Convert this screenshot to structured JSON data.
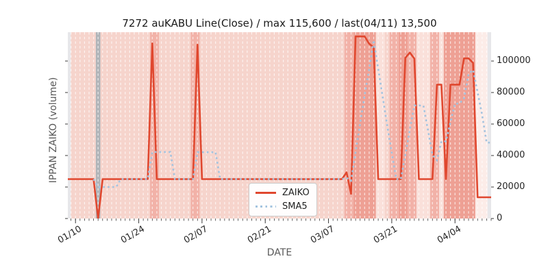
{
  "accent_colors": {
    "zaiko_line": "#e0472e",
    "sma5_line": "#a3c3df",
    "title_text": "#1a1a1a",
    "tick_text": "#262626",
    "axis_label_text": "#595959"
  },
  "chart_data": {
    "type": "line",
    "title": "7272 auKABU Line(Close) / max 115,600 / last(04/11) 13,500",
    "xlabel": "DATE",
    "ylabel": "IPPAN ZAIKO (volume)",
    "stats": {
      "max": 115600,
      "last": 13500,
      "last_date": "04/11",
      "symbol": "7272 auKABU"
    },
    "legend": {
      "position": "lower center",
      "entries": [
        "ZAIKO",
        "SMA5"
      ]
    },
    "grid": "white dashed vertical lines, one per day",
    "ylim": [
      0,
      118300
    ],
    "y_ticks": [
      0,
      20000,
      40000,
      60000,
      80000,
      100000
    ],
    "y_tick_side": "right",
    "x_tick_labels": [
      "01/10",
      "01/24",
      "02/07",
      "02/21",
      "03/07",
      "03/21",
      "04/04"
    ],
    "x_tick_days": [
      0,
      14,
      28,
      42,
      56,
      70,
      84
    ],
    "x_minor_ticks": "daily",
    "xlim_days": [
      -1.7,
      92.0
    ],
    "dates": [
      "01/10",
      "01/11",
      "01/12",
      "01/13",
      "01/14",
      "01/15",
      "01/16",
      "01/17",
      "01/18",
      "01/19",
      "01/20",
      "01/21",
      "01/22",
      "01/23",
      "01/24",
      "01/25",
      "01/26",
      "01/27",
      "01/28",
      "01/29",
      "01/30",
      "01/31",
      "02/01",
      "02/02",
      "02/03",
      "02/04",
      "02/05",
      "02/06",
      "02/07",
      "02/08",
      "02/09",
      "02/10",
      "02/11",
      "02/12",
      "02/13",
      "02/14",
      "02/15",
      "02/16",
      "02/17",
      "02/18",
      "02/19",
      "02/20",
      "02/21",
      "02/22",
      "02/23",
      "02/24",
      "02/25",
      "02/26",
      "02/27",
      "02/28",
      "03/01",
      "03/02",
      "03/03",
      "03/04",
      "03/05",
      "03/06",
      "03/07",
      "03/08",
      "03/09",
      "03/10",
      "03/11",
      "03/12",
      "03/13",
      "03/14",
      "03/15",
      "03/16",
      "03/17",
      "03/18",
      "03/19",
      "03/20",
      "03/21",
      "03/22",
      "03/23",
      "03/24",
      "03/25",
      "03/26",
      "03/27",
      "03/28",
      "03/29",
      "03/30",
      "03/31",
      "04/01",
      "04/02",
      "04/03",
      "04/04",
      "04/05",
      "04/06",
      "04/07",
      "04/08",
      "04/09",
      "04/10",
      "04/11"
    ],
    "series": [
      {
        "name": "ZAIKO",
        "style": "solid",
        "color": "#e0472e",
        "values": [
          25000,
          25000,
          25000,
          25000,
          25000,
          0,
          25000,
          25000,
          25000,
          25000,
          25000,
          25000,
          25000,
          25000,
          25000,
          25000,
          25000,
          111200,
          25000,
          25000,
          25000,
          25000,
          25000,
          25000,
          25000,
          25000,
          25000,
          110400,
          25000,
          25000,
          25000,
          25000,
          25000,
          25000,
          25000,
          25000,
          25000,
          25000,
          25000,
          25000,
          25000,
          25000,
          25000,
          25000,
          25000,
          25000,
          25000,
          25000,
          25000,
          25000,
          25000,
          25000,
          25000,
          25000,
          25000,
          25000,
          25000,
          25000,
          25000,
          25000,
          29300,
          15600,
          115600,
          115600,
          115600,
          111000,
          108600,
          25000,
          25000,
          25000,
          25000,
          25000,
          25000,
          102000,
          105400,
          101500,
          25000,
          25000,
          25000,
          25000,
          85000,
          85000,
          25000,
          85000,
          85000,
          85000,
          101700,
          101700,
          98800,
          13500,
          13500,
          13500
        ]
      },
      {
        "name": "SMA5",
        "style": "dotted",
        "color": "#a3c3df",
        "values": [
          null,
          null,
          null,
          null,
          25000,
          20000,
          20000,
          20000,
          20000,
          20000,
          25000,
          25000,
          25000,
          25000,
          25000,
          25000,
          25000,
          42240,
          42240,
          42240,
          42240,
          42240,
          25000,
          25000,
          25000,
          25000,
          25000,
          42080,
          42080,
          42080,
          42080,
          42080,
          25000,
          25000,
          25000,
          25000,
          25000,
          25000,
          25000,
          25000,
          25000,
          25000,
          25000,
          25000,
          25000,
          25000,
          25000,
          25000,
          25000,
          25000,
          25000,
          25000,
          25000,
          25000,
          25000,
          25000,
          25000,
          25000,
          25000,
          25000,
          25860,
          23980,
          42100,
          60220,
          78340,
          94680,
          113280,
          95160,
          77040,
          58920,
          41720,
          25000,
          25000,
          40400,
          56480,
          71780,
          71780,
          71780,
          56380,
          40300,
          37000,
          49000,
          49000,
          61000,
          73000,
          73000,
          76340,
          91680,
          94440,
          80140,
          65840,
          48200
        ]
      }
    ],
    "background_bands": {
      "colors": {
        "base": "#f6d4cc",
        "medium": "#f2b2a8",
        "dark": "#eea094",
        "pale": "#fae0da",
        "xpale": "#fcece8",
        "gray": "#b0b4b8",
        "edge": "#e7e7ea"
      },
      "spans": [
        {
          "from": -1.7,
          "to": -1.05,
          "shade": "edge"
        },
        {
          "from": -1.05,
          "to": 4.5,
          "shade": "base"
        },
        {
          "from": 4.5,
          "to": 5.5,
          "shade": "gray"
        },
        {
          "from": 5.5,
          "to": 16.5,
          "shade": "base"
        },
        {
          "from": 16.5,
          "to": 18.5,
          "shade": "medium"
        },
        {
          "from": 18.5,
          "to": 25.5,
          "shade": "base"
        },
        {
          "from": 25.5,
          "to": 27.5,
          "shade": "medium"
        },
        {
          "from": 27.5,
          "to": 59.5,
          "shade": "base"
        },
        {
          "from": 59.5,
          "to": 61.5,
          "shade": "medium"
        },
        {
          "from": 61.5,
          "to": 66.5,
          "shade": "dark"
        },
        {
          "from": 66.5,
          "to": 68.5,
          "shade": "pale"
        },
        {
          "from": 68.5,
          "to": 69.5,
          "shade": "base"
        },
        {
          "from": 69.5,
          "to": 71.5,
          "shade": "medium"
        },
        {
          "from": 71.5,
          "to": 73.5,
          "shade": "dark"
        },
        {
          "from": 73.5,
          "to": 75.5,
          "shade": "medium"
        },
        {
          "from": 75.5,
          "to": 78.5,
          "shade": "pale"
        },
        {
          "from": 78.5,
          "to": 80.5,
          "shade": "medium"
        },
        {
          "from": 80.5,
          "to": 81.5,
          "shade": "pale"
        },
        {
          "from": 81.5,
          "to": 88.5,
          "shade": "dark"
        },
        {
          "from": 88.5,
          "to": 91.2,
          "shade": "xpale"
        },
        {
          "from": 91.2,
          "to": 92.0,
          "shade": "edge"
        }
      ]
    }
  }
}
